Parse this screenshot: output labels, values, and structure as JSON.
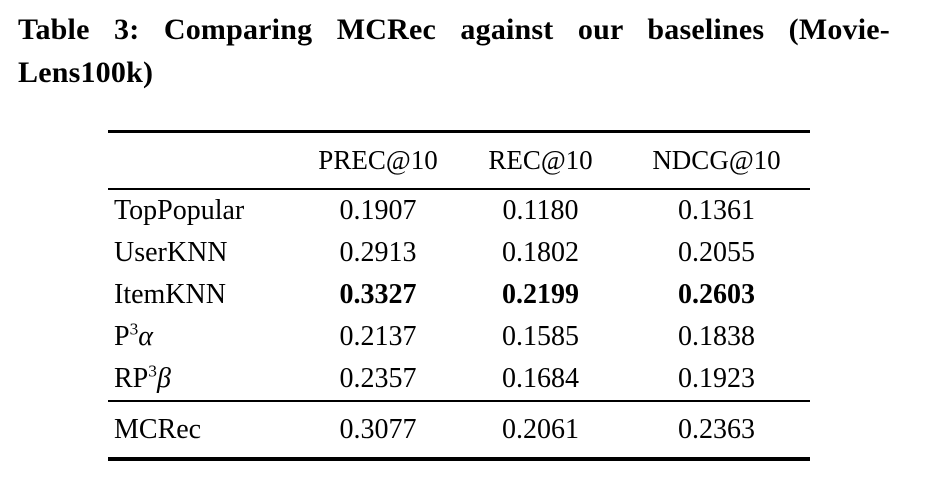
{
  "caption": {
    "line1": "Table 3: Comparing MCRec against our baselines (Movie-",
    "line2": "Lens100k)"
  },
  "colors": {
    "text": "#000000",
    "background": "#ffffff",
    "rule": "#000000"
  },
  "table": {
    "columns": [
      "",
      "PREC@10",
      "REC@10",
      "NDCG@10"
    ],
    "rows": [
      {
        "label": {
          "base": "TopPopular",
          "sup": "",
          "greek": ""
        },
        "values": [
          "0.1907",
          "0.1180",
          "0.1361"
        ],
        "bold_values": false
      },
      {
        "label": {
          "base": "UserKNN",
          "sup": "",
          "greek": ""
        },
        "values": [
          "0.2913",
          "0.1802",
          "0.2055"
        ],
        "bold_values": false
      },
      {
        "label": {
          "base": "ItemKNN",
          "sup": "",
          "greek": ""
        },
        "values": [
          "0.3327",
          "0.2199",
          "0.2603"
        ],
        "bold_values": true
      },
      {
        "label": {
          "base": "P",
          "sup": "3",
          "greek": "α"
        },
        "values": [
          "0.2137",
          "0.1585",
          "0.1838"
        ],
        "bold_values": false
      },
      {
        "label": {
          "base": "RP",
          "sup": "3",
          "greek": "β"
        },
        "values": [
          "0.2357",
          "0.1684",
          "0.1923"
        ],
        "bold_values": false
      }
    ],
    "footer_row": {
      "label": {
        "base": "MCRec",
        "sup": "",
        "greek": ""
      },
      "values": [
        "0.3077",
        "0.2061",
        "0.2363"
      ],
      "bold_values": false
    }
  }
}
